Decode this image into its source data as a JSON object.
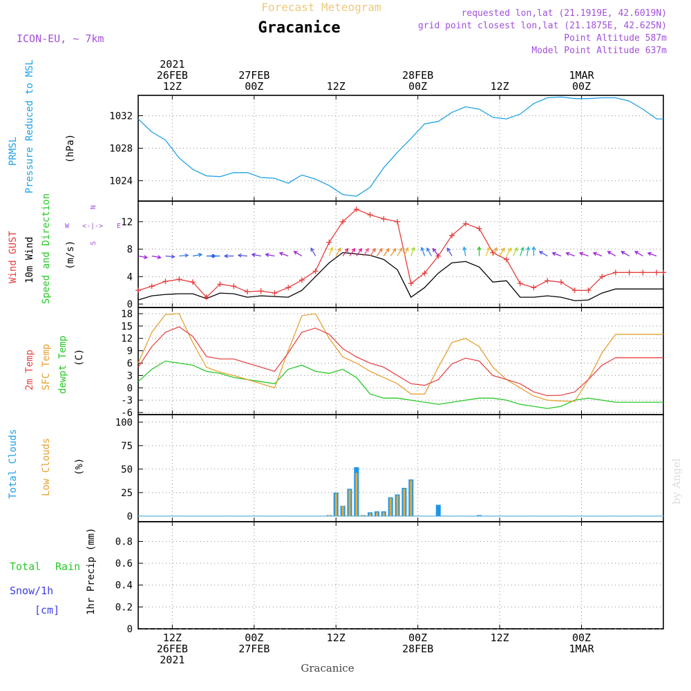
{
  "header": {
    "subtitle": "Forecast Meteogram",
    "title": "Gracanice",
    "model": "ICON-EU, ~ 7km",
    "requested": "requested lon,lat (21.1919E, 42.6019N)",
    "gridpoint": "grid point closest lon,lat (21.1875E, 42.625N)",
    "point_alt": "Point Altitude 587m",
    "model_alt": "Model Point Altitude 637m",
    "watermark": "by Angel",
    "footer": "Gracanice"
  },
  "time_axis": {
    "top_labels": [
      {
        "t": 12,
        "lines": [
          "2021",
          "26FEB",
          "12Z"
        ]
      },
      {
        "t": 24,
        "lines": [
          "27FEB",
          "00Z"
        ]
      },
      {
        "t": 36,
        "lines": [
          "12Z"
        ]
      },
      {
        "t": 48,
        "lines": [
          "28FEB",
          "00Z"
        ]
      },
      {
        "t": 60,
        "lines": [
          "12Z"
        ]
      },
      {
        "t": 72,
        "lines": [
          "1MAR",
          "00Z"
        ]
      }
    ],
    "bottom_labels": [
      {
        "t": 12,
        "lines": [
          "12Z",
          "26FEB",
          "2021"
        ]
      },
      {
        "t": 24,
        "lines": [
          "00Z",
          "27FEB"
        ]
      },
      {
        "t": 36,
        "lines": [
          "12Z"
        ]
      },
      {
        "t": 48,
        "lines": [
          "00Z",
          "28FEB"
        ]
      },
      {
        "t": 60,
        "lines": [
          "12Z"
        ]
      },
      {
        "t": 72,
        "lines": [
          "00Z",
          "1MAR"
        ]
      }
    ]
  },
  "panels": {
    "pressure": {
      "label1": "PRMSL",
      "label2": "Pressure Reduced to MSL",
      "unit": "(hPa)"
    },
    "wind": {
      "label1": "Wind GUST",
      "label2": "10m Wind",
      "label3": "Speed and Direction",
      "unit": "(m/s)",
      "compass": {
        "n": "N",
        "s": "S",
        "w": "W",
        "e": "E"
      }
    },
    "temp": {
      "label1": "2m Temp",
      "label2": "SFC Temp",
      "label3": "dewpt Temp",
      "unit": "(C)"
    },
    "clouds": {
      "label1": "Total Clouds",
      "label2": "Low Clouds",
      "unit": "(%)"
    },
    "precip": {
      "label1": "Total",
      "label1b": "Rain",
      "label2": "Snow/1h",
      "label3": "[cm]",
      "unit": "1hr Precip (mm)"
    }
  },
  "colors": {
    "pressure": "#1ea0e6",
    "gust": "#e63c3c",
    "wind": "#000000",
    "t2m": "#e64646",
    "sfc": "#e6a032",
    "dewpt": "#28c828",
    "total_clouds": "#1e96e6",
    "low_clouds": "#e6aa3c",
    "rain": "#28c828",
    "snow": "#3c3ce6",
    "header_purple": "#a050dc",
    "subtitle": "#f0c878"
  },
  "chart_data": [
    {
      "type": "line",
      "title": "PRMSL",
      "ylabel": "(hPa)",
      "ylim": [
        1021.5,
        1034.5
      ],
      "yticks": [
        1024,
        1028,
        1032
      ],
      "x": [
        7,
        9,
        11,
        13,
        15,
        17,
        19,
        21,
        23,
        25,
        27,
        29,
        31,
        33,
        35,
        37,
        39,
        41,
        43,
        45,
        47,
        49,
        51,
        53,
        55,
        57,
        59,
        61,
        63,
        65,
        67,
        69,
        71,
        73,
        75,
        77,
        79,
        81,
        83,
        84
      ],
      "series": [
        {
          "name": "PRMSL",
          "values": [
            1031.6,
            1030.0,
            1029.0,
            1026.8,
            1025.4,
            1024.6,
            1024.5,
            1025.0,
            1025.0,
            1024.4,
            1024.3,
            1023.7,
            1024.7,
            1024.2,
            1023.4,
            1022.3,
            1022.1,
            1023.2,
            1025.6,
            1027.5,
            1029.2,
            1031.0,
            1031.3,
            1032.4,
            1033.1,
            1032.8,
            1031.8,
            1031.6,
            1032.2,
            1033.5,
            1034.2,
            1034.3,
            1034.1,
            1034.1,
            1034.2,
            1034.2,
            1033.8,
            1032.8,
            1031.6,
            1031.6
          ]
        }
      ],
      "grid": true
    },
    {
      "type": "line",
      "title": "Wind",
      "ylabel": "(m/s)",
      "ylim": [
        -0.5,
        15
      ],
      "yticks": [
        0,
        4,
        8,
        12
      ],
      "x": [
        7,
        9,
        11,
        13,
        15,
        17,
        19,
        21,
        23,
        25,
        27,
        29,
        31,
        33,
        35,
        37,
        39,
        41,
        43,
        45,
        47,
        49,
        51,
        53,
        55,
        57,
        59,
        61,
        63,
        65,
        67,
        69,
        71,
        73,
        75,
        77,
        79,
        81,
        83,
        84
      ],
      "series": [
        {
          "name": "Wind GUST",
          "values": [
            2.0,
            2.6,
            3.3,
            3.6,
            3.2,
            1.0,
            2.9,
            2.6,
            1.8,
            1.9,
            1.6,
            2.4,
            3.5,
            4.8,
            9.0,
            12.0,
            13.8,
            13.0,
            12.4,
            12.0,
            3.0,
            4.5,
            7.0,
            10.0,
            11.7,
            11.0,
            7.5,
            6.5,
            3.0,
            2.4,
            3.4,
            3.2,
            2.0,
            2.0,
            4.0,
            4.6,
            4.6,
            4.6,
            4.6,
            4.6
          ]
        },
        {
          "name": "10m Wind",
          "values": [
            0.6,
            1.2,
            1.4,
            1.5,
            1.5,
            0.8,
            1.6,
            1.5,
            1.0,
            1.2,
            1.1,
            1.0,
            2.0,
            4.0,
            6.0,
            7.5,
            7.3,
            7.1,
            6.5,
            5.0,
            1.0,
            2.4,
            4.5,
            6.0,
            6.2,
            5.4,
            3.2,
            3.4,
            1.0,
            1.0,
            1.2,
            1.0,
            0.5,
            0.6,
            1.6,
            2.2,
            2.2,
            2.2,
            2.2,
            2.2
          ]
        }
      ],
      "grid": true
    },
    {
      "type": "line",
      "title": "Temperature",
      "ylabel": "(C)",
      "ylim": [
        -6.5,
        19.5
      ],
      "yticks": [
        -6,
        -3,
        0,
        3,
        6,
        9,
        12,
        15,
        18
      ],
      "x": [
        7,
        9,
        11,
        13,
        15,
        17,
        19,
        21,
        23,
        25,
        27,
        29,
        31,
        33,
        35,
        37,
        39,
        41,
        43,
        45,
        47,
        49,
        51,
        53,
        55,
        57,
        59,
        61,
        63,
        65,
        67,
        69,
        71,
        73,
        75,
        77,
        79,
        81,
        83,
        84
      ],
      "series": [
        {
          "name": "2m Temp",
          "values": [
            5.0,
            10.0,
            13.5,
            14.8,
            12.5,
            7.6,
            7.0,
            7.0,
            6.0,
            5.0,
            4.0,
            8.5,
            13.5,
            14.5,
            13.0,
            9.5,
            7.5,
            6.0,
            5.0,
            3.0,
            1.0,
            0.6,
            2.0,
            5.8,
            7.2,
            6.5,
            3.0,
            2.0,
            1.0,
            -1.0,
            -1.9,
            -1.8,
            -1.0,
            2.0,
            5.5,
            7.3,
            7.3,
            7.3,
            7.3,
            7.3
          ]
        },
        {
          "name": "SFC Temp",
          "values": [
            6.0,
            13.5,
            17.8,
            18.0,
            11.0,
            5.0,
            3.8,
            3.0,
            2.0,
            1.0,
            0.0,
            9.0,
            17.5,
            18.0,
            12.0,
            7.5,
            6.0,
            4.0,
            2.5,
            1.0,
            -1.5,
            -1.5,
            5.0,
            11.0,
            12.0,
            10.0,
            5.0,
            2.0,
            0.0,
            -2.0,
            -3.0,
            -3.2,
            -3.3,
            2.0,
            8.5,
            13.0,
            13.0,
            13.0,
            13.0,
            13.0
          ]
        },
        {
          "name": "dewpt Temp",
          "values": [
            1.5,
            4.5,
            6.5,
            6.0,
            5.5,
            4.0,
            3.5,
            2.5,
            2.0,
            1.5,
            1.0,
            4.5,
            5.5,
            4.0,
            3.5,
            4.5,
            2.5,
            -1.5,
            -2.5,
            -2.5,
            -3.0,
            -3.5,
            -4.0,
            -3.5,
            -3.0,
            -2.5,
            -2.5,
            -3.0,
            -4.0,
            -4.5,
            -5.0,
            -4.5,
            -3.0,
            -2.5,
            -3.0,
            -3.5,
            -3.5,
            -3.5,
            -3.5,
            -3.5
          ]
        }
      ],
      "grid": true
    },
    {
      "type": "bar",
      "title": "Clouds",
      "ylabel": "(%)",
      "ylim": [
        -6,
        108
      ],
      "yticks": [
        0,
        25,
        50,
        75,
        100
      ],
      "x": [
        35,
        36,
        37,
        38,
        39,
        40,
        41,
        42,
        43,
        44,
        45,
        46,
        47,
        48,
        49,
        51,
        57
      ],
      "series": [
        {
          "name": "Total Clouds",
          "values": [
            1,
            25,
            11,
            29,
            52,
            1,
            4,
            5,
            5,
            20,
            23,
            30,
            39,
            0,
            0,
            12,
            1
          ]
        },
        {
          "name": "Low Clouds",
          "values": [
            1,
            24,
            11,
            28,
            46,
            1,
            3,
            4,
            4,
            19,
            22,
            29,
            38,
            0,
            0,
            0,
            0
          ]
        }
      ],
      "grid": true
    },
    {
      "type": "bar",
      "title": "Precipitation",
      "ylabel": "1hr Precip (mm)",
      "ylim": [
        0,
        0.98
      ],
      "yticks": [
        0,
        0.2,
        0.4,
        0.6,
        0.8
      ],
      "series": [
        {
          "name": "Total Rain",
          "values": []
        },
        {
          "name": "Snow/1h",
          "values": []
        }
      ],
      "grid": true
    }
  ],
  "wind_arrows": {
    "note": "direction arrows drawn in the wind panel",
    "y_value": 7,
    "entries": [
      {
        "t": 7,
        "dir": 280,
        "color": "#a020dc"
      },
      {
        "t": 9,
        "dir": 280,
        "color": "#a020dc"
      },
      {
        "t": 11,
        "dir": 275,
        "color": "#5050e6"
      },
      {
        "t": 13,
        "dir": 265,
        "color": "#3c78e6"
      },
      {
        "t": 15,
        "dir": 260,
        "color": "#1e78e6"
      },
      {
        "t": 17,
        "dir": 270,
        "color": "#1e64e6"
      },
      {
        "t": 19,
        "dir": 90,
        "color": "#1e64e6"
      },
      {
        "t": 21,
        "dir": 90,
        "color": "#3c50e6"
      },
      {
        "t": 23,
        "dir": 95,
        "color": "#5050e6"
      },
      {
        "t": 25,
        "dir": 100,
        "color": "#6e32dc"
      },
      {
        "t": 27,
        "dir": 100,
        "color": "#8228dc"
      },
      {
        "t": 29,
        "dir": 110,
        "color": "#9628dc"
      },
      {
        "t": 31,
        "dir": 120,
        "color": "#a020dc"
      },
      {
        "t": 33,
        "dir": 150,
        "color": "#5050e6"
      },
      {
        "t": 35,
        "dir": 200,
        "color": "#e6c828"
      },
      {
        "t": 36,
        "dir": 210,
        "color": "#e6a032"
      },
      {
        "t": 37,
        "dir": 215,
        "color": "#dc2864"
      },
      {
        "t": 38,
        "dir": 215,
        "color": "#e61e8c"
      },
      {
        "t": 39,
        "dir": 215,
        "color": "#dc1ea0"
      },
      {
        "t": 40,
        "dir": 215,
        "color": "#e6508c"
      },
      {
        "t": 41,
        "dir": 215,
        "color": "#e66446"
      },
      {
        "t": 42,
        "dir": 215,
        "color": "#e67832"
      },
      {
        "t": 43,
        "dir": 215,
        "color": "#e68232"
      },
      {
        "t": 44,
        "dir": 215,
        "color": "#e6962e"
      },
      {
        "t": 45,
        "dir": 210,
        "color": "#e6a032"
      },
      {
        "t": 46,
        "dir": 205,
        "color": "#e6b428"
      },
      {
        "t": 47,
        "dir": 200,
        "color": "#aadc28"
      },
      {
        "t": 49,
        "dir": 160,
        "color": "#1e8ce6"
      },
      {
        "t": 50,
        "dir": 150,
        "color": "#3c78e6"
      },
      {
        "t": 51,
        "dir": 145,
        "color": "#8228dc"
      },
      {
        "t": 53,
        "dir": 150,
        "color": "#5050e6"
      },
      {
        "t": 55,
        "dir": 170,
        "color": "#1ea0e6"
      },
      {
        "t": 57,
        "dir": 180,
        "color": "#28c828"
      },
      {
        "t": 58,
        "dir": 200,
        "color": "#e6c828"
      },
      {
        "t": 59,
        "dir": 205,
        "color": "#e6a032"
      },
      {
        "t": 60,
        "dir": 210,
        "color": "#e6b428"
      },
      {
        "t": 61,
        "dir": 210,
        "color": "#e6c828"
      },
      {
        "t": 62,
        "dir": 205,
        "color": "#a0dc28"
      },
      {
        "t": 63,
        "dir": 200,
        "color": "#28c878"
      },
      {
        "t": 64,
        "dir": 190,
        "color": "#28b4c8"
      },
      {
        "t": 65,
        "dir": 180,
        "color": "#1ea0e6"
      },
      {
        "t": 67,
        "dir": 120,
        "color": "#5050e6"
      },
      {
        "t": 69,
        "dir": 110,
        "color": "#8228dc"
      },
      {
        "t": 71,
        "dir": 110,
        "color": "#9628dc"
      },
      {
        "t": 73,
        "dir": 110,
        "color": "#a020dc"
      },
      {
        "t": 75,
        "dir": 110,
        "color": "#a020dc"
      },
      {
        "t": 77,
        "dir": 120,
        "color": "#a020dc"
      },
      {
        "t": 79,
        "dir": 120,
        "color": "#8228dc"
      },
      {
        "t": 81,
        "dir": 120,
        "color": "#a020dc"
      },
      {
        "t": 83,
        "dir": 110,
        "color": "#a020dc"
      }
    ]
  }
}
